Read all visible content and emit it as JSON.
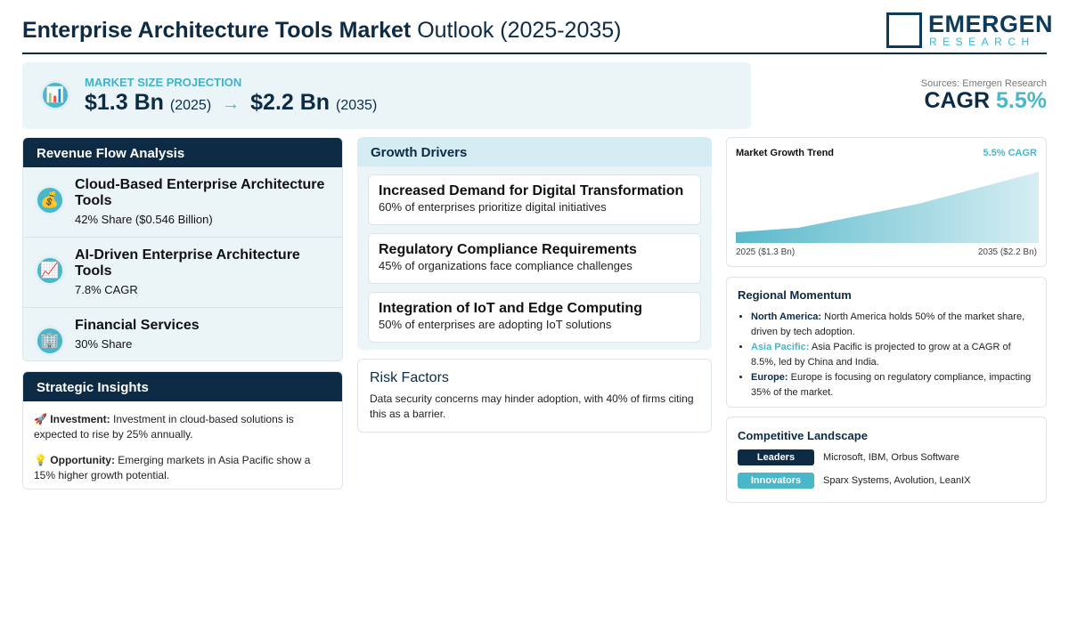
{
  "header": {
    "title_bold": "Enterprise Architecture Tools Market",
    "title_rest": "Outlook (2025-2035)",
    "logo_main": "EMERGEN",
    "logo_sub": "RESEARCH"
  },
  "projection": {
    "icon": "📊",
    "label": "MARKET SIZE PROJECTION",
    "start_value": "$1.3 Bn",
    "start_year": "(2025)",
    "arrow": "→",
    "end_value": "$2.2 Bn",
    "end_year": "(2035)"
  },
  "summary": {
    "sources": "Sources: Emergen Research",
    "cagr_label": "CAGR",
    "cagr_value": "5.5%"
  },
  "revenue_flow": {
    "title": "Revenue Flow Analysis",
    "items": [
      {
        "icon": "💰",
        "name": "Cloud-Based Enterprise Architecture Tools",
        "detail": "42% Share ($0.546 Billion)"
      },
      {
        "icon": "📈",
        "name": "AI-Driven Enterprise Architecture Tools",
        "detail": "7.8% CAGR"
      },
      {
        "icon": "🏢",
        "name": "Financial Services",
        "detail": "30% Share"
      }
    ]
  },
  "strategic_insights": {
    "title": "Strategic Insights",
    "items": [
      {
        "icon": "🚀",
        "label": "Investment:",
        "text": "Investment in cloud-based solutions is expected to rise by 25% annually."
      },
      {
        "icon": "💡",
        "label": "Opportunity:",
        "text": "Emerging markets in Asia Pacific show a 15% higher growth potential."
      }
    ]
  },
  "growth_drivers": {
    "title": "Growth Drivers",
    "items": [
      {
        "title": "Increased Demand for Digital Transformation",
        "text": "60% of enterprises prioritize digital initiatives"
      },
      {
        "title": "Regulatory Compliance Requirements",
        "text": "45% of organizations face compliance challenges"
      },
      {
        "title": "Integration of IoT and Edge Computing",
        "text": "50% of enterprises are adopting IoT solutions"
      }
    ]
  },
  "risk_factors": {
    "title": "Risk Factors",
    "text": "Data security concerns may hinder adoption, with 40% of firms citing this as a barrier."
  },
  "trend": {
    "title": "Market Growth Trend",
    "badge": "5.5% CAGR",
    "start_label": "2025 ($1.3 Bn)",
    "end_label": "2035 ($2.2 Bn)"
  },
  "regional": {
    "title": "Regional Momentum",
    "items": [
      {
        "region": "North America:",
        "text": "North America holds 50% of the market share, driven by tech adoption."
      },
      {
        "region": "Asia Pacific:",
        "text": "Asia Pacific is projected to grow at a CAGR of 8.5%, led by China and India."
      },
      {
        "region": "Europe:",
        "text": "Europe is focusing on regulatory compliance, impacting 35% of the market."
      }
    ]
  },
  "competitive": {
    "title": "Competitive Landscape",
    "rows": [
      {
        "tag": "Leaders",
        "companies": "Microsoft, IBM, Orbus Software"
      },
      {
        "tag": "Innovators",
        "companies": "Sparx Systems, Avolution, LeanIX"
      }
    ]
  }
}
